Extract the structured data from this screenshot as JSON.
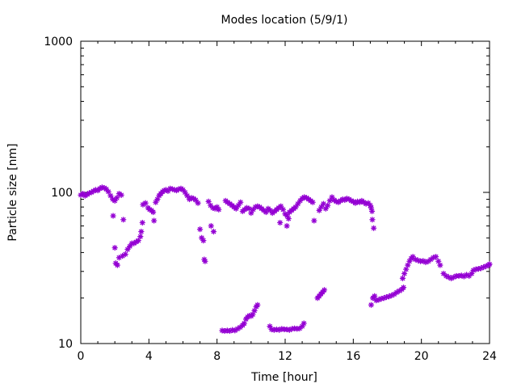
{
  "chart_data": {
    "type": "scatter",
    "title": "Modes location (5/9/1)",
    "xlabel": "Time [hour]",
    "ylabel": "Particle size [nm]",
    "xlim": [
      0,
      24
    ],
    "ylim": [
      10,
      1000
    ],
    "y_scale": "log",
    "grid": false,
    "legend": "none",
    "x_ticks": [
      0,
      4,
      8,
      12,
      16,
      20,
      24
    ],
    "x_tick_labels": [
      "0",
      "4",
      "8",
      "12",
      "16",
      "20",
      "24"
    ],
    "y_ticks": [
      10,
      100,
      1000
    ],
    "y_tick_labels": [
      "10",
      "100",
      "1000"
    ],
    "marker_color": "#9400d3",
    "points": [
      [
        0.0,
        96
      ],
      [
        0.12,
        98
      ],
      [
        0.25,
        95
      ],
      [
        0.38,
        97
      ],
      [
        0.5,
        99
      ],
      [
        0.62,
        100
      ],
      [
        0.75,
        102
      ],
      [
        0.88,
        104
      ],
      [
        1.0,
        103
      ],
      [
        1.12,
        106
      ],
      [
        1.25,
        108
      ],
      [
        1.38,
        107
      ],
      [
        1.5,
        105
      ],
      [
        1.62,
        101
      ],
      [
        1.75,
        95
      ],
      [
        1.88,
        90
      ],
      [
        2.0,
        88
      ],
      [
        2.12,
        92
      ],
      [
        2.25,
        98
      ],
      [
        2.38,
        96
      ],
      [
        1.9,
        70
      ],
      [
        2.5,
        66
      ],
      [
        2.0,
        43
      ],
      [
        2.05,
        34
      ],
      [
        2.15,
        33
      ],
      [
        2.25,
        37
      ],
      [
        2.45,
        38
      ],
      [
        2.62,
        39
      ],
      [
        2.75,
        42
      ],
      [
        2.88,
        44
      ],
      [
        3.0,
        46
      ],
      [
        3.12,
        46
      ],
      [
        3.25,
        47
      ],
      [
        3.38,
        48
      ],
      [
        3.5,
        51
      ],
      [
        3.55,
        55
      ],
      [
        3.62,
        63
      ],
      [
        3.65,
        83
      ],
      [
        3.8,
        85
      ],
      [
        3.95,
        79
      ],
      [
        4.05,
        77
      ],
      [
        4.15,
        76
      ],
      [
        4.25,
        74
      ],
      [
        4.3,
        65
      ],
      [
        4.4,
        86
      ],
      [
        4.5,
        90
      ],
      [
        4.6,
        95
      ],
      [
        4.7,
        98
      ],
      [
        4.8,
        101
      ],
      [
        4.9,
        103
      ],
      [
        5.0,
        104
      ],
      [
        5.12,
        102
      ],
      [
        5.25,
        106
      ],
      [
        5.38,
        105
      ],
      [
        5.5,
        104
      ],
      [
        5.62,
        103
      ],
      [
        5.75,
        105
      ],
      [
        5.88,
        106
      ],
      [
        6.0,
        104
      ],
      [
        6.12,
        100
      ],
      [
        6.25,
        95
      ],
      [
        6.38,
        90
      ],
      [
        6.5,
        92
      ],
      [
        6.62,
        91
      ],
      [
        6.75,
        89
      ],
      [
        6.88,
        85
      ],
      [
        7.0,
        57
      ],
      [
        7.1,
        50
      ],
      [
        7.2,
        48
      ],
      [
        7.25,
        36
      ],
      [
        7.3,
        35
      ],
      [
        7.5,
        87
      ],
      [
        7.62,
        82
      ],
      [
        7.75,
        79
      ],
      [
        7.88,
        78
      ],
      [
        8.0,
        80
      ],
      [
        8.1,
        77
      ],
      [
        7.65,
        60
      ],
      [
        7.8,
        55
      ],
      [
        8.5,
        88
      ],
      [
        8.62,
        86
      ],
      [
        8.75,
        84
      ],
      [
        8.88,
        82
      ],
      [
        9.0,
        80
      ],
      [
        9.12,
        78
      ],
      [
        9.25,
        82
      ],
      [
        9.38,
        86
      ],
      [
        9.5,
        75
      ],
      [
        9.62,
        77
      ],
      [
        9.75,
        79
      ],
      [
        9.88,
        78
      ],
      [
        10.0,
        73
      ],
      [
        10.12,
        77
      ],
      [
        10.25,
        80
      ],
      [
        10.38,
        81
      ],
      [
        10.5,
        80
      ],
      [
        10.62,
        78
      ],
      [
        10.75,
        76
      ],
      [
        10.88,
        74
      ],
      [
        11.0,
        78
      ],
      [
        11.12,
        76
      ],
      [
        11.25,
        73
      ],
      [
        11.38,
        75
      ],
      [
        11.5,
        77
      ],
      [
        11.62,
        79
      ],
      [
        11.75,
        81
      ],
      [
        11.88,
        77
      ],
      [
        12.0,
        72
      ],
      [
        12.12,
        70
      ],
      [
        12.25,
        74
      ],
      [
        12.38,
        76
      ],
      [
        12.5,
        78
      ],
      [
        12.62,
        80
      ],
      [
        12.75,
        84
      ],
      [
        12.88,
        88
      ],
      [
        13.0,
        91
      ],
      [
        13.12,
        93
      ],
      [
        13.25,
        92
      ],
      [
        13.38,
        90
      ],
      [
        13.5,
        88
      ],
      [
        13.62,
        86
      ],
      [
        11.7,
        63
      ],
      [
        12.1,
        60
      ],
      [
        12.2,
        67
      ],
      [
        13.7,
        65
      ],
      [
        14.0,
        76
      ],
      [
        14.12,
        80
      ],
      [
        14.25,
        84
      ],
      [
        14.38,
        78
      ],
      [
        14.5,
        82
      ],
      [
        14.62,
        88
      ],
      [
        14.75,
        93
      ],
      [
        14.88,
        89
      ],
      [
        15.0,
        87
      ],
      [
        15.12,
        86
      ],
      [
        15.25,
        88
      ],
      [
        15.38,
        90
      ],
      [
        15.5,
        89
      ],
      [
        15.62,
        91
      ],
      [
        15.75,
        90
      ],
      [
        15.88,
        88
      ],
      [
        16.0,
        87
      ],
      [
        16.12,
        85
      ],
      [
        16.25,
        87
      ],
      [
        16.38,
        86
      ],
      [
        16.5,
        88
      ],
      [
        16.62,
        86
      ],
      [
        16.75,
        84
      ],
      [
        16.88,
        85
      ],
      [
        17.0,
        82
      ],
      [
        17.05,
        79
      ],
      [
        17.1,
        75
      ],
      [
        17.12,
        66
      ],
      [
        17.2,
        58
      ],
      [
        8.3,
        12.2
      ],
      [
        8.45,
        12.1
      ],
      [
        8.6,
        12.2
      ],
      [
        8.75,
        12.1
      ],
      [
        8.9,
        12.3
      ],
      [
        9.05,
        12.2
      ],
      [
        9.2,
        12.5
      ],
      [
        9.35,
        12.8
      ],
      [
        9.5,
        13.2
      ],
      [
        9.6,
        13.6
      ],
      [
        9.7,
        14.5
      ],
      [
        9.8,
        15.0
      ],
      [
        9.9,
        15.3
      ],
      [
        10.0,
        15.2
      ],
      [
        10.1,
        15.6
      ],
      [
        10.2,
        16.5
      ],
      [
        10.3,
        17.5
      ],
      [
        10.38,
        18.0
      ],
      [
        11.1,
        13.0
      ],
      [
        11.2,
        12.4
      ],
      [
        11.35,
        12.3
      ],
      [
        11.5,
        12.4
      ],
      [
        11.65,
        12.3
      ],
      [
        11.8,
        12.5
      ],
      [
        11.95,
        12.4
      ],
      [
        12.1,
        12.4
      ],
      [
        12.25,
        12.3
      ],
      [
        12.4,
        12.5
      ],
      [
        12.55,
        12.6
      ],
      [
        12.7,
        12.5
      ],
      [
        12.85,
        12.6
      ],
      [
        13.0,
        13.0
      ],
      [
        13.1,
        13.6
      ],
      [
        13.9,
        20.0
      ],
      [
        14.0,
        20.6
      ],
      [
        14.1,
        21.3
      ],
      [
        14.2,
        21.9
      ],
      [
        14.3,
        22.6
      ],
      [
        17.05,
        18.0
      ],
      [
        17.15,
        20.0
      ],
      [
        17.25,
        20.6
      ],
      [
        17.35,
        19.3
      ],
      [
        17.5,
        19.5
      ],
      [
        17.65,
        19.8
      ],
      [
        17.8,
        20.0
      ],
      [
        17.95,
        20.3
      ],
      [
        18.1,
        20.5
      ],
      [
        18.25,
        20.8
      ],
      [
        18.4,
        21.2
      ],
      [
        18.55,
        21.8
      ],
      [
        18.7,
        22.3
      ],
      [
        18.85,
        22.8
      ],
      [
        18.95,
        23.5
      ],
      [
        18.9,
        27.0
      ],
      [
        19.0,
        29.0
      ],
      [
        19.1,
        31.0
      ],
      [
        19.2,
        33.0
      ],
      [
        19.3,
        35.0
      ],
      [
        19.4,
        36.5
      ],
      [
        19.5,
        37.5
      ],
      [
        19.65,
        36.0
      ],
      [
        19.8,
        35.5
      ],
      [
        19.95,
        35.0
      ],
      [
        20.1,
        35.2
      ],
      [
        20.25,
        34.5
      ],
      [
        20.4,
        35.0
      ],
      [
        20.55,
        36.0
      ],
      [
        20.7,
        37.0
      ],
      [
        20.85,
        37.5
      ],
      [
        21.0,
        35.0
      ],
      [
        21.1,
        33.0
      ],
      [
        21.3,
        29.0
      ],
      [
        21.45,
        28.0
      ],
      [
        21.6,
        27.5
      ],
      [
        21.75,
        27.0
      ],
      [
        21.9,
        27.5
      ],
      [
        22.05,
        28.0
      ],
      [
        22.2,
        28.0
      ],
      [
        22.35,
        28.2
      ],
      [
        22.5,
        27.8
      ],
      [
        22.65,
        28.5
      ],
      [
        22.8,
        28.0
      ],
      [
        22.95,
        29.0
      ],
      [
        23.05,
        30.5
      ],
      [
        23.2,
        31.0
      ],
      [
        23.35,
        31.2
      ],
      [
        23.5,
        31.5
      ],
      [
        23.65,
        32.0
      ],
      [
        23.8,
        32.5
      ],
      [
        23.95,
        33.0
      ],
      [
        24.0,
        33.5
      ]
    ]
  }
}
